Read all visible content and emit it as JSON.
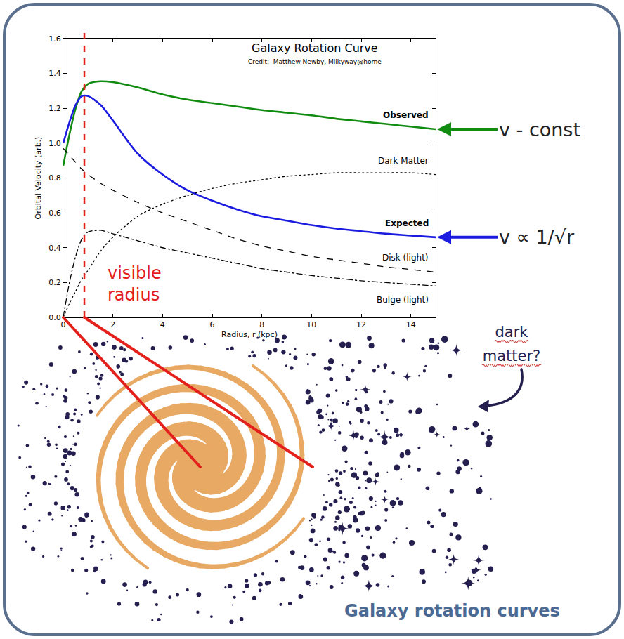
{
  "chart_data": {
    "type": "line",
    "title": "Galaxy Rotation Curve",
    "subtitle": "Credit:  Matthew Newby, Milkyway@home",
    "x_label": "Radius, r (kpc)",
    "y_label": "Orbital Velocity (arb.)",
    "x": [
      0,
      0.25,
      0.5,
      0.75,
      1,
      1.5,
      2,
      3,
      4,
      5,
      6,
      7,
      8,
      9,
      10,
      11,
      12,
      13,
      14,
      15
    ],
    "series": [
      {
        "name": "Observed",
        "color": "#118c11",
        "line_style": "solid",
        "values": [
          0.87,
          1.05,
          1.2,
          1.3,
          1.34,
          1.355,
          1.35,
          1.32,
          1.28,
          1.25,
          1.23,
          1.21,
          1.19,
          1.175,
          1.16,
          1.14,
          1.125,
          1.11,
          1.095,
          1.08
        ]
      },
      {
        "name": "Expected",
        "color": "#1c1ce0",
        "line_style": "solid",
        "values": [
          1.0,
          1.12,
          1.22,
          1.27,
          1.27,
          1.22,
          1.13,
          0.94,
          0.82,
          0.73,
          0.67,
          0.62,
          0.58,
          0.555,
          0.53,
          0.51,
          0.495,
          0.48,
          0.47,
          0.46
        ]
      },
      {
        "name": "Dark Matter",
        "color": "#000000",
        "line_style": "dotted",
        "values": [
          0,
          0.08,
          0.15,
          0.22,
          0.27,
          0.38,
          0.46,
          0.58,
          0.65,
          0.7,
          0.74,
          0.77,
          0.79,
          0.81,
          0.82,
          0.83,
          0.83,
          0.83,
          0.83,
          0.82
        ]
      },
      {
        "name": "Disk (light)",
        "color": "#000000",
        "line_style": "dashed",
        "values": [
          0.97,
          0.93,
          0.89,
          0.85,
          0.82,
          0.77,
          0.73,
          0.66,
          0.6,
          0.55,
          0.5,
          0.45,
          0.41,
          0.38,
          0.35,
          0.33,
          0.31,
          0.29,
          0.275,
          0.26
        ]
      },
      {
        "name": "Bulge (light)",
        "color": "#000000",
        "line_style": "dashdot",
        "values": [
          0,
          0.2,
          0.35,
          0.45,
          0.49,
          0.5,
          0.48,
          0.44,
          0.4,
          0.37,
          0.34,
          0.31,
          0.28,
          0.26,
          0.24,
          0.225,
          0.21,
          0.2,
          0.19,
          0.18
        ]
      }
    ],
    "xlim": [
      0,
      15
    ],
    "ylim": [
      0,
      1.6
    ],
    "xticks": [
      0,
      2,
      4,
      6,
      8,
      10,
      12,
      14
    ],
    "yticks": [
      {
        "value": 0,
        "label": "0.0"
      },
      0.2,
      0.4,
      0.6,
      0.8,
      {
        "value": 1,
        "label": "1.0"
      },
      1.2,
      1.4,
      1.6
    ],
    "grid": false,
    "annotations": [
      {
        "text": "visible radius",
        "x": 0.85,
        "color": "#e3201b",
        "line_style": "dashed"
      },
      {
        "text": "v - const",
        "series": "Observed"
      },
      {
        "text": "v ∝ 1/√r",
        "series": "Expected"
      }
    ]
  },
  "illustration": {
    "note": "dark matter?",
    "caption": "Galaxy rotation curves"
  }
}
